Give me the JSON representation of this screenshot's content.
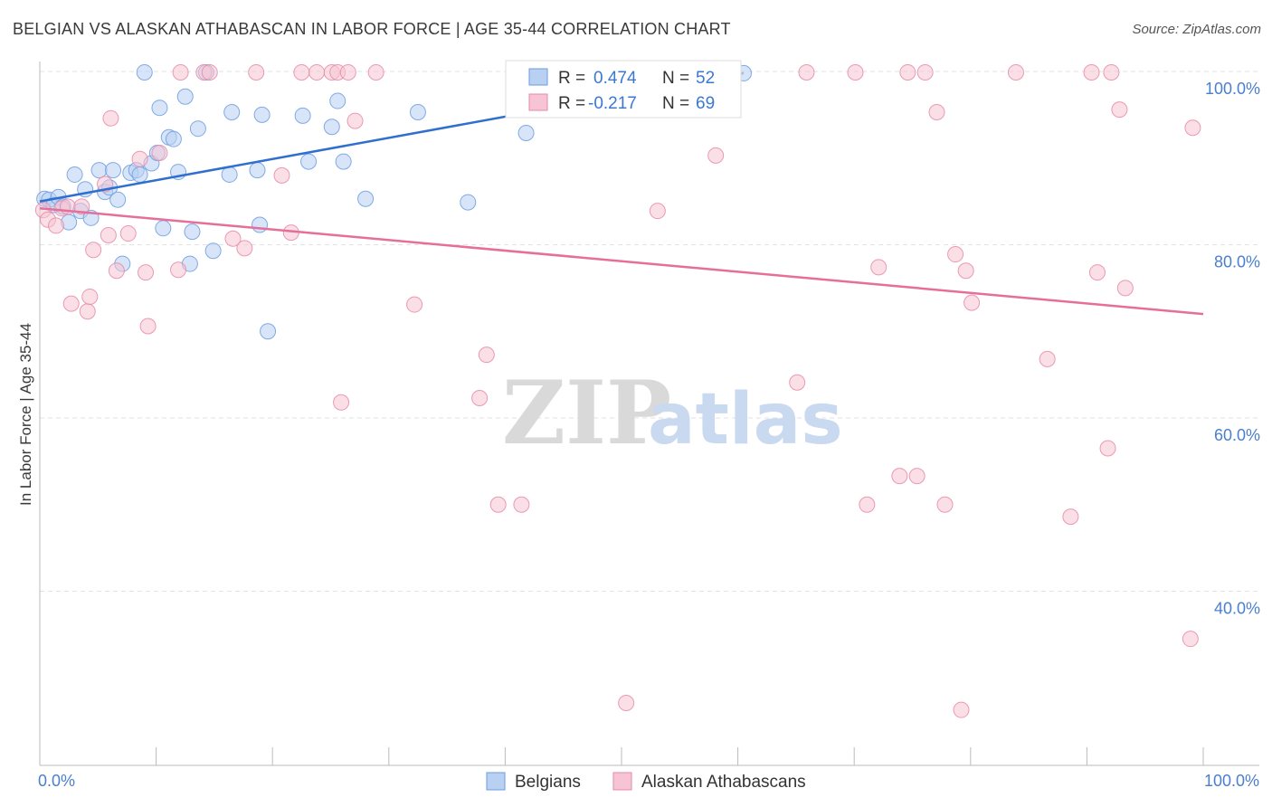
{
  "title": "BELGIAN VS ALASKAN ATHABASCAN IN LABOR FORCE | AGE 35-44 CORRELATION CHART",
  "source": "Source: ZipAtlas.com",
  "watermark": {
    "zip": "ZIP",
    "atlas": "atlas"
  },
  "legend": {
    "r_label": "R =",
    "n_label": "N =",
    "rows": [
      {
        "r": "0.474",
        "n": "52"
      },
      {
        "r": "-0.217",
        "n": "69"
      }
    ]
  },
  "chart_data": {
    "type": "scatter",
    "title": "BELGIAN VS ALASKAN ATHABASCAN IN LABOR FORCE | AGE 35-44 CORRELATION CHART",
    "xlabel": "",
    "ylabel": "In Labor Force | Age 35-44",
    "xlim": [
      0,
      100
    ],
    "ylim": [
      20,
      100
    ],
    "x_tick_labels": [
      "0.0%",
      "100.0%"
    ],
    "y_ticks": [
      40,
      60,
      80,
      100
    ],
    "y_tick_labels": [
      "40.0%",
      "60.0%",
      "80.0%",
      "100.0%"
    ],
    "grid": true,
    "legend_position": "top-center",
    "series": [
      {
        "name": "Belgians",
        "color": "#6b9de0",
        "fill": "#b8d0f2",
        "r": 0.474,
        "n": 52,
        "trend": {
          "x": [
            0,
            60.5
          ],
          "y": [
            85.0,
            99.8
          ]
        },
        "points": [
          [
            0.4,
            85.3
          ],
          [
            0.8,
            85.2
          ],
          [
            1.2,
            84.6
          ],
          [
            1.6,
            85.5
          ],
          [
            2.0,
            84.4
          ],
          [
            2.5,
            82.6
          ],
          [
            3.0,
            88.1
          ],
          [
            3.5,
            83.9
          ],
          [
            3.9,
            86.4
          ],
          [
            4.4,
            83.1
          ],
          [
            5.1,
            88.6
          ],
          [
            5.6,
            86.1
          ],
          [
            6.0,
            86.6
          ],
          [
            6.3,
            88.6
          ],
          [
            6.7,
            85.2
          ],
          [
            7.1,
            77.8
          ],
          [
            7.8,
            88.3
          ],
          [
            8.3,
            88.6
          ],
          [
            8.6,
            88.1
          ],
          [
            9.0,
            99.9
          ],
          [
            9.6,
            89.4
          ],
          [
            10.1,
            90.6
          ],
          [
            10.3,
            95.8
          ],
          [
            10.6,
            81.9
          ],
          [
            11.1,
            92.4
          ],
          [
            11.5,
            92.2
          ],
          [
            11.9,
            88.4
          ],
          [
            12.5,
            97.1
          ],
          [
            12.9,
            77.8
          ],
          [
            13.1,
            81.5
          ],
          [
            13.6,
            93.4
          ],
          [
            14.3,
            99.9
          ],
          [
            14.9,
            79.3
          ],
          [
            16.3,
            88.1
          ],
          [
            16.5,
            95.3
          ],
          [
            18.7,
            88.6
          ],
          [
            18.9,
            82.3
          ],
          [
            19.1,
            95.0
          ],
          [
            19.6,
            70.0
          ],
          [
            22.6,
            94.9
          ],
          [
            23.1,
            89.6
          ],
          [
            25.1,
            93.6
          ],
          [
            25.6,
            96.6
          ],
          [
            26.1,
            89.6
          ],
          [
            28.0,
            85.3
          ],
          [
            32.5,
            95.3
          ],
          [
            36.8,
            84.9
          ],
          [
            41.8,
            92.9
          ],
          [
            43.4,
            100.0
          ],
          [
            49.0,
            100.0
          ],
          [
            52.8,
            99.8
          ],
          [
            60.5,
            99.8
          ]
        ]
      },
      {
        "name": "Alaskan Athabascans",
        "color": "#e88aa8",
        "fill": "#f6c4d4",
        "r": -0.217,
        "n": 69,
        "trend": {
          "x": [
            0,
            100
          ],
          "y": [
            84.2,
            72.0
          ]
        },
        "points": [
          [
            0.3,
            84.0
          ],
          [
            0.7,
            82.9
          ],
          [
            1.4,
            82.2
          ],
          [
            1.9,
            84.2
          ],
          [
            2.4,
            84.4
          ],
          [
            2.7,
            73.2
          ],
          [
            3.6,
            84.4
          ],
          [
            4.1,
            72.3
          ],
          [
            4.3,
            74.0
          ],
          [
            4.6,
            79.4
          ],
          [
            5.6,
            87.0
          ],
          [
            5.9,
            81.1
          ],
          [
            6.1,
            94.6
          ],
          [
            6.6,
            77.0
          ],
          [
            7.6,
            81.3
          ],
          [
            8.6,
            89.9
          ],
          [
            9.1,
            76.8
          ],
          [
            9.3,
            70.6
          ],
          [
            10.3,
            90.6
          ],
          [
            11.9,
            77.1
          ],
          [
            12.1,
            99.9
          ],
          [
            14.1,
            99.9
          ],
          [
            14.6,
            99.9
          ],
          [
            16.6,
            80.7
          ],
          [
            17.6,
            79.6
          ],
          [
            18.6,
            99.9
          ],
          [
            20.8,
            88.0
          ],
          [
            21.6,
            81.4
          ],
          [
            22.5,
            99.9
          ],
          [
            23.8,
            99.9
          ],
          [
            25.1,
            99.9
          ],
          [
            25.6,
            99.9
          ],
          [
            25.9,
            61.8
          ],
          [
            26.5,
            99.9
          ],
          [
            27.1,
            94.3
          ],
          [
            28.9,
            99.9
          ],
          [
            32.2,
            73.1
          ],
          [
            37.8,
            62.3
          ],
          [
            38.4,
            67.3
          ],
          [
            39.4,
            50.0
          ],
          [
            41.4,
            50.0
          ],
          [
            50.4,
            27.1
          ],
          [
            53.1,
            83.9
          ],
          [
            58.1,
            90.3
          ],
          [
            65.1,
            64.1
          ],
          [
            65.9,
            99.9
          ],
          [
            70.1,
            99.9
          ],
          [
            71.1,
            50.0
          ],
          [
            72.1,
            77.4
          ],
          [
            73.9,
            53.3
          ],
          [
            74.6,
            99.9
          ],
          [
            75.4,
            53.3
          ],
          [
            76.1,
            99.9
          ],
          [
            77.1,
            95.3
          ],
          [
            77.8,
            50.0
          ],
          [
            78.7,
            78.9
          ],
          [
            79.2,
            26.3
          ],
          [
            79.6,
            77.0
          ],
          [
            80.1,
            73.3
          ],
          [
            83.9,
            99.9
          ],
          [
            86.6,
            66.8
          ],
          [
            88.6,
            48.6
          ],
          [
            90.4,
            99.9
          ],
          [
            90.9,
            76.8
          ],
          [
            91.8,
            56.5
          ],
          [
            92.1,
            99.9
          ],
          [
            92.8,
            95.6
          ],
          [
            93.3,
            75.0
          ],
          [
            98.9,
            34.5
          ],
          [
            99.1,
            93.5
          ]
        ]
      }
    ]
  }
}
